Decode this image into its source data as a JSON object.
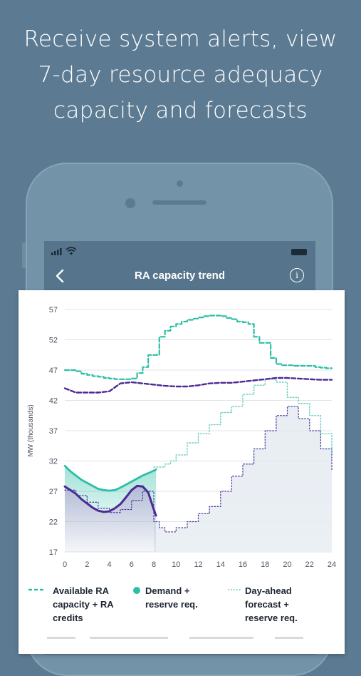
{
  "headline": {
    "line1": "Receive system alerts, view",
    "line2": "7-day resource adequacy",
    "line3": "capacity and forecasts"
  },
  "screen": {
    "nav": {
      "title": "RA capacity trend",
      "back_icon": "chevron-left-icon",
      "info_icon": "info-icon"
    },
    "status_icons": [
      "signal-icon",
      "wifi-icon",
      "battery-icon"
    ]
  },
  "legend": {
    "ra_line1": "Available RA",
    "ra_line2": "capacity + RA",
    "ra_line3": "credits",
    "demand_line1": "Demand +",
    "demand_line2": "reserve req.",
    "dayahead_line1": "Day-ahead",
    "dayahead_line2": "forecast +",
    "dayahead_line3": "reserve req."
  },
  "colors": {
    "background": "#5c7b92",
    "ra_capacity": "#2cbfa6",
    "demand_reserve": "#4b2a93",
    "dayahead_forecast": "#6ed0c0",
    "area_fill": "#a9b4cf"
  },
  "chart_data": {
    "type": "line",
    "ylabel": "MW (thousands)",
    "xlim": [
      0,
      24
    ],
    "ylim": [
      17,
      57
    ],
    "xticks": [
      0,
      2,
      4,
      6,
      8,
      10,
      12,
      14,
      16,
      18,
      20,
      22,
      24
    ],
    "yticks": [
      17,
      22,
      27,
      32,
      37,
      42,
      47,
      52,
      57
    ],
    "grid": true,
    "legend_position": "bottom",
    "series": [
      {
        "key": "ra_capacity_forecast",
        "style": "dashed",
        "step": true,
        "x": [
          0,
          1,
          1.5,
          2,
          2.5,
          3,
          3.5,
          4,
          4.5,
          5,
          5.5,
          6,
          6.5,
          7,
          7.5,
          8,
          8.5,
          9,
          9.5,
          10,
          10.5,
          11,
          11.5,
          12,
          12.5,
          13,
          13.5,
          14,
          14.5,
          15,
          15.5,
          16,
          16.5,
          17,
          17.5,
          18,
          18.5,
          19,
          19.5,
          20,
          20.5,
          21,
          21.5,
          22,
          22.5,
          23,
          23.5,
          24
        ],
        "y": [
          47,
          46.8,
          46.4,
          46.2,
          46,
          45.9,
          45.7,
          45.6,
          45.5,
          45.5,
          45.5,
          45.6,
          46.5,
          47.5,
          49.5,
          49.5,
          52.5,
          53.5,
          54.2,
          54.6,
          55,
          55.3,
          55.5,
          55.7,
          55.9,
          56,
          56,
          55.9,
          55.6,
          55.4,
          55,
          54.9,
          54.6,
          52.5,
          51.5,
          51.5,
          49,
          48,
          47.8,
          47.8,
          47.7,
          47.7,
          47.7,
          47.7,
          47.5,
          47.4,
          47.3,
          47.3
        ]
      },
      {
        "key": "demand_reserve_forecast",
        "style": "dashed",
        "step": false,
        "x": [
          0,
          1,
          2,
          3,
          4,
          5,
          6,
          7,
          8,
          9,
          10,
          11,
          12,
          13,
          14,
          15,
          16,
          17,
          18,
          19,
          20,
          21,
          22,
          23,
          24
        ],
        "y": [
          44,
          43.3,
          43.3,
          43.3,
          43.5,
          44.8,
          45,
          44.8,
          44.6,
          44.4,
          44.3,
          44.3,
          44.5,
          44.8,
          44.9,
          44.9,
          45.1,
          45.3,
          45.5,
          45.7,
          45.7,
          45.6,
          45.5,
          45.4,
          45.4
        ]
      },
      {
        "key": "ra_capacity_actual",
        "style": "solid",
        "step": false,
        "x": [
          0,
          0.5,
          1,
          1.5,
          2,
          2.5,
          3,
          3.5,
          4,
          4.5,
          5,
          5.5,
          6,
          6.5,
          7,
          7.5,
          8,
          8.2
        ],
        "y": [
          31.2,
          30.3,
          29.6,
          28.9,
          28.4,
          27.9,
          27.4,
          27.2,
          27.1,
          27.2,
          27.6,
          28.1,
          28.6,
          29.1,
          29.6,
          30,
          30.4,
          30.6
        ]
      },
      {
        "key": "demand_actual",
        "style": "solid",
        "step": false,
        "x": [
          0,
          0.5,
          1,
          1.5,
          2,
          2.5,
          3,
          3.5,
          4,
          4.5,
          5,
          5.5,
          6,
          6.5,
          7,
          7.5,
          8,
          8.2
        ],
        "y": [
          27.8,
          27.2,
          26.6,
          25.7,
          25,
          24.3,
          23.8,
          23.6,
          23.7,
          24.2,
          24.9,
          26,
          27.2,
          27.9,
          27.8,
          26.8,
          24,
          23
        ]
      },
      {
        "key": "dayahead_forecast",
        "style": "dotted",
        "step": true,
        "x": [
          8,
          9,
          9.5,
          10,
          11,
          12,
          13,
          14,
          15,
          16,
          17,
          18,
          19,
          20,
          21,
          22,
          23,
          24
        ],
        "y": [
          31,
          31.5,
          32,
          33,
          35,
          36.5,
          38,
          40,
          41,
          43,
          44.5,
          45.5,
          45,
          42.5,
          41.5,
          39.5,
          36.5,
          33.3
        ]
      },
      {
        "key": "demand_dayahead",
        "style": "dotted",
        "step": true,
        "x": [
          0,
          1,
          2,
          3,
          4,
          5,
          6,
          7,
          8,
          8.5,
          9,
          10,
          11,
          12,
          13,
          14,
          15,
          16,
          17,
          18,
          19,
          20,
          21,
          22,
          23,
          24
        ],
        "y": [
          27.2,
          26.3,
          25.2,
          24.2,
          23.5,
          24,
          25.5,
          27,
          22,
          21,
          20.3,
          21,
          22,
          23.3,
          24.5,
          27,
          29.5,
          31.5,
          34,
          37,
          39.5,
          41,
          39,
          37,
          34,
          30.5
        ]
      }
    ]
  }
}
